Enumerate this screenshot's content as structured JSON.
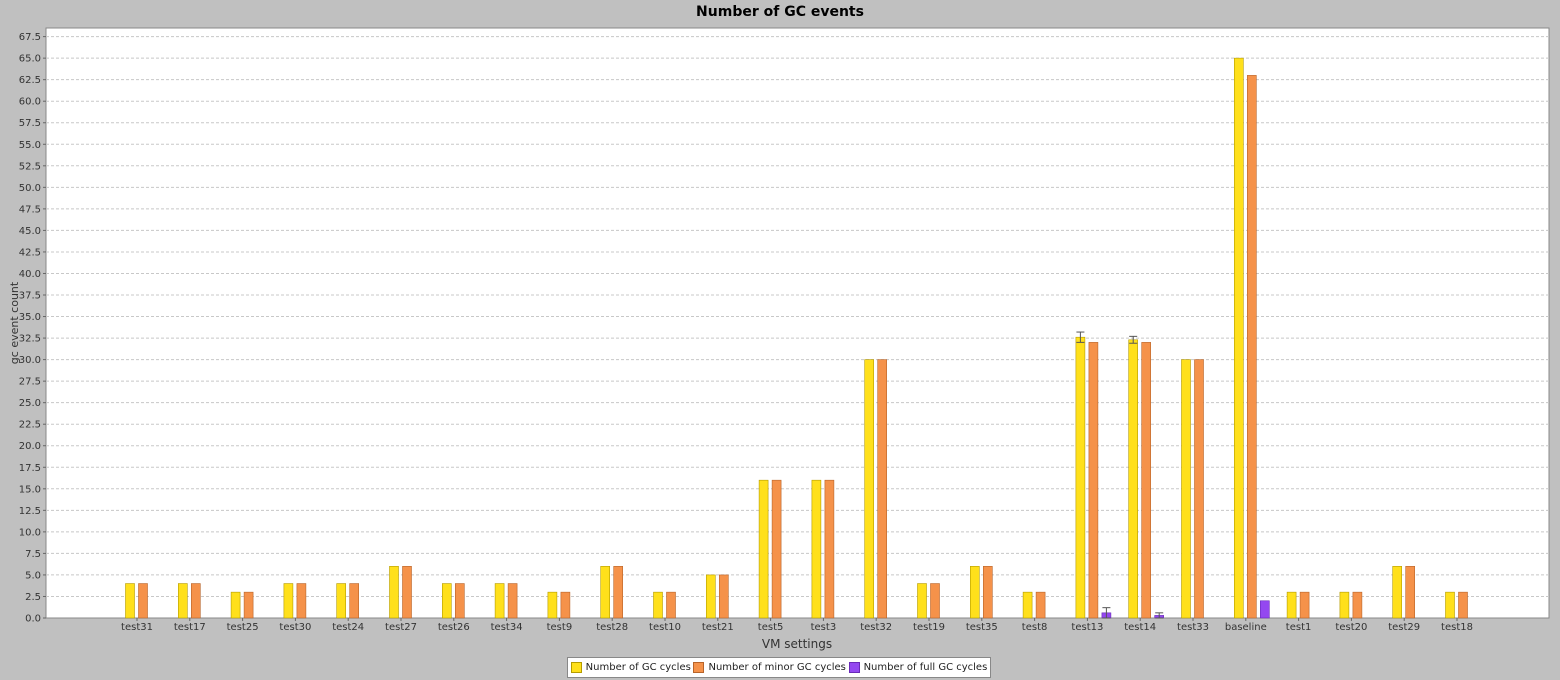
{
  "chart_data": {
    "type": "bar",
    "title": "Number of GC events",
    "xlabel": "VM settings",
    "ylabel": "gc event count",
    "ylim": [
      0,
      68.5
    ],
    "yticks": [
      "0.0",
      "2.5",
      "5.0",
      "7.5",
      "10.0",
      "12.5",
      "15.0",
      "17.5",
      "20.0",
      "22.5",
      "25.0",
      "27.5",
      "30.0",
      "32.5",
      "35.0",
      "37.5",
      "40.0",
      "42.5",
      "45.0",
      "47.5",
      "50.0",
      "52.5",
      "55.0",
      "57.5",
      "60.0",
      "62.5",
      "65.0",
      "67.5"
    ],
    "grid": true,
    "legend_position": "bottom",
    "categories": [
      "test31",
      "test17",
      "test25",
      "test30",
      "test24",
      "test27",
      "test26",
      "test34",
      "test9",
      "test28",
      "test10",
      "test21",
      "test5",
      "test3",
      "test32",
      "test19",
      "test35",
      "test8",
      "test13",
      "test14",
      "test33",
      "baseline",
      "test1",
      "test20",
      "test29",
      "test18"
    ],
    "series": [
      {
        "name": "Number of GC cycles",
        "color": "#ffe01b",
        "values": [
          4,
          4,
          3,
          4,
          4,
          6,
          4,
          4,
          3,
          6,
          3,
          5,
          16,
          16,
          30,
          4,
          6,
          3,
          32.6,
          32.3,
          30,
          65,
          3,
          3,
          6,
          3
        ],
        "errors": [
          0,
          0,
          0,
          0,
          0,
          0,
          0,
          0,
          0,
          0,
          0,
          0,
          0,
          0,
          0,
          0,
          0,
          0,
          0.6,
          0.4,
          0,
          0,
          0,
          0,
          0,
          0
        ]
      },
      {
        "name": "Number of minor GC cycles",
        "color": "#f5924a",
        "values": [
          4,
          4,
          3,
          4,
          4,
          6,
          4,
          4,
          3,
          6,
          3,
          5,
          16,
          16,
          30,
          4,
          6,
          3,
          32,
          32,
          30,
          63,
          3,
          3,
          6,
          3
        ],
        "errors": [
          0,
          0,
          0,
          0,
          0,
          0,
          0,
          0,
          0,
          0,
          0,
          0,
          0,
          0,
          0,
          0,
          0,
          0,
          0,
          0,
          0,
          0,
          0,
          0,
          0,
          0
        ]
      },
      {
        "name": "Number of full GC cycles",
        "color": "#9448f0",
        "values": [
          0,
          0,
          0,
          0,
          0,
          0,
          0,
          0,
          0,
          0,
          0,
          0,
          0,
          0,
          0,
          0,
          0,
          0,
          0.6,
          0.3,
          0,
          2,
          0,
          0,
          0,
          0
        ],
        "errors": [
          0,
          0,
          0,
          0,
          0,
          0,
          0,
          0,
          0,
          0,
          0,
          0,
          0,
          0,
          0,
          0,
          0,
          0,
          0.6,
          0.3,
          0,
          0,
          0,
          0,
          0,
          0
        ]
      }
    ]
  }
}
